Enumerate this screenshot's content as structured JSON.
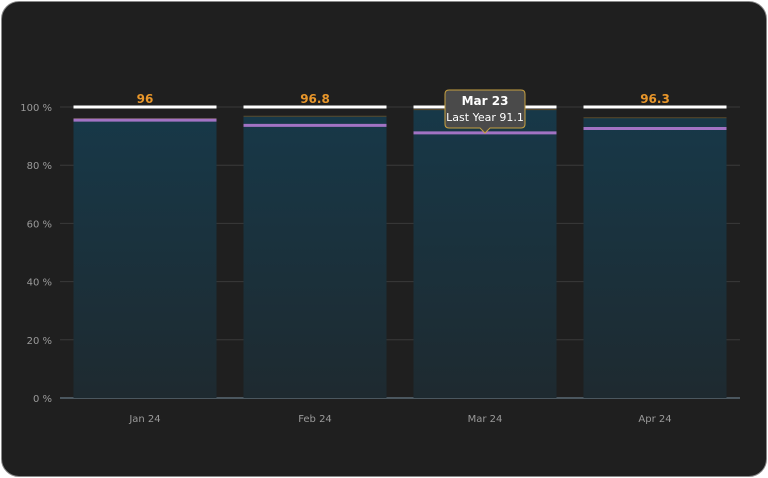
{
  "chart_data": {
    "type": "bar",
    "categories": [
      "Jan 24",
      "Feb 24",
      "Mar 24",
      "Apr 24"
    ],
    "series": [
      {
        "values": [
          96,
          96.8,
          99.1,
          96.3
        ]
      },
      {
        "name": "Last Year",
        "values": [
          95.5,
          93.7,
          91.1,
          92.6
        ]
      }
    ],
    "target": 100,
    "y_ticks": [
      "0 %",
      "20 %",
      "40 %",
      "60 %",
      "80 %",
      "100 %"
    ],
    "ylim": [
      0,
      100
    ],
    "grid": true,
    "tooltip": {
      "title": "Mar 23",
      "label": "Last Year",
      "value": "91.1",
      "category_index": 2
    },
    "colors": {
      "background": "#1f1f1f",
      "bar_top": "#173848",
      "bar_bottom": "#1e2a30",
      "last_year_line": "#a273c4",
      "target_line": "#ffffff",
      "value_label": "#e8962a",
      "grid": "#3a3a3a",
      "axis": "#5a6a75"
    }
  }
}
